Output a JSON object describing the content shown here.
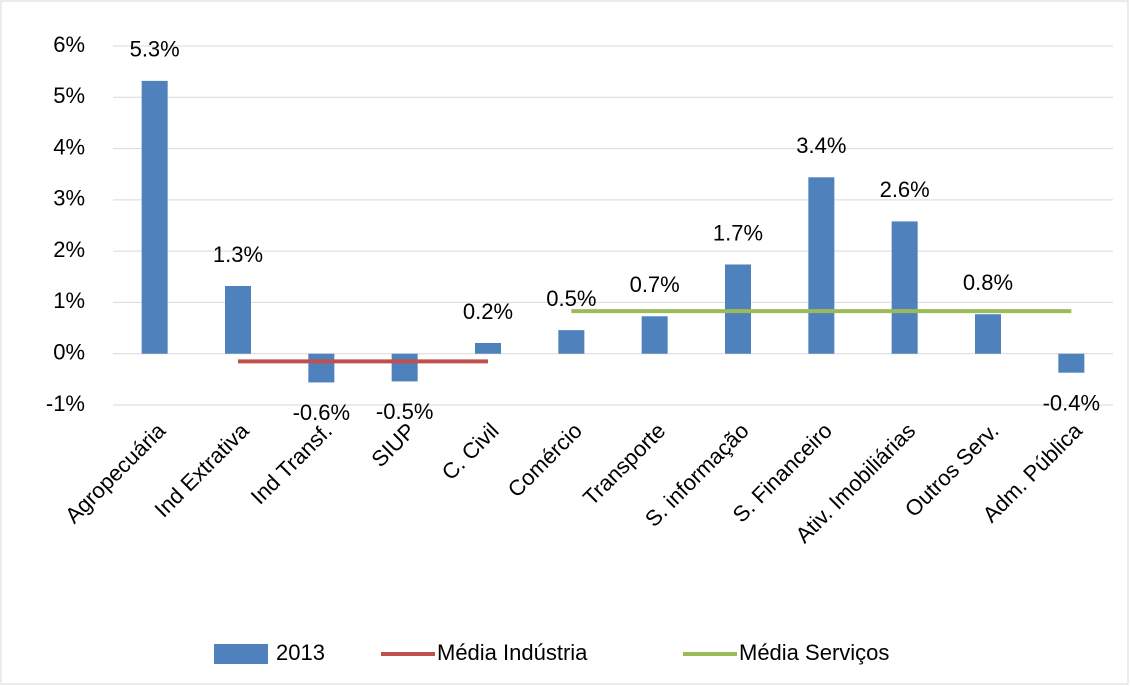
{
  "chart_data": {
    "type": "bar",
    "categories": [
      "Agropecuária",
      "Ind Extrativa",
      "Ind Transf.",
      "SIUP",
      "C. Civil",
      "Comércio",
      "Transporte",
      "S. informação",
      "S. Financeiro",
      "Ativ. Imobiliárias",
      "Outros Serv.",
      "Adm. Pública"
    ],
    "series": [
      {
        "name": "2013",
        "type": "bar",
        "color": "#4f81bd",
        "values": [
          5.32,
          1.32,
          -0.56,
          -0.54,
          0.21,
          0.46,
          0.73,
          1.74,
          3.44,
          2.58,
          0.77,
          -0.37
        ],
        "value_labels": [
          "5.3%",
          "1.3%",
          "-0.6%",
          "-0.5%",
          "0.2%",
          "0.5%",
          "0.7%",
          "1.7%",
          "3.4%",
          "2.6%",
          "0.8%",
          "-0.4%"
        ]
      },
      {
        "name": "Média Indústria",
        "type": "line",
        "color": "#c0504d",
        "values": [
          null,
          -0.15,
          -0.15,
          -0.15,
          -0.15,
          null,
          null,
          null,
          null,
          null,
          null,
          null
        ]
      },
      {
        "name": "Média Serviços",
        "type": "line",
        "color": "#9bbb59",
        "values": [
          null,
          null,
          null,
          null,
          null,
          0.83,
          0.83,
          0.83,
          0.83,
          0.83,
          0.83,
          0.83
        ]
      }
    ],
    "ylim": [
      -1,
      6
    ],
    "yticks": [
      {
        "value": -1,
        "label": "-1%"
      },
      {
        "value": 0,
        "label": "0%"
      },
      {
        "value": 1,
        "label": "1%"
      },
      {
        "value": 2,
        "label": "2%"
      },
      {
        "value": 3,
        "label": "3%"
      },
      {
        "value": 4,
        "label": "4%"
      },
      {
        "value": 5,
        "label": "5%"
      },
      {
        "value": 6,
        "label": "6%"
      }
    ],
    "grid": true,
    "legend": "bottom"
  }
}
